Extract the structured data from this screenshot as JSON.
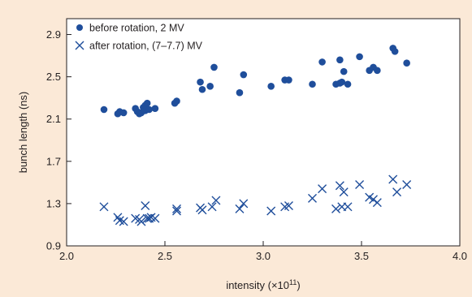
{
  "colors": {
    "background": "#fbe9d7",
    "plot_area": "#ffffff",
    "series": "#1f4e9b",
    "text": "#231f20"
  },
  "chart_data": {
    "type": "scatter",
    "xlabel": "intensity (×10",
    "xlabel_superscript": "11",
    "xlabel_close": ")",
    "ylabel": "bunch length (ns)",
    "xlim": [
      2.0,
      4.0
    ],
    "ylim": [
      0.9,
      3.05
    ],
    "x_ticks": [
      2.0,
      2.5,
      3.0,
      3.5,
      4.0
    ],
    "x_tick_labels": [
      "2.0",
      "2.5",
      "3.0",
      "3.5",
      "4.0"
    ],
    "y_ticks": [
      0.9,
      1.3,
      1.7,
      2.1,
      2.5,
      2.9
    ],
    "y_tick_labels": [
      "0.9",
      "1.3",
      "1.7",
      "2.1",
      "2.5",
      "2.9"
    ],
    "grid": false,
    "legend": "top-left",
    "series": [
      {
        "name": "before rotation, 2 MV",
        "marker": "circle",
        "points": [
          [
            2.19,
            2.19
          ],
          [
            2.26,
            2.15
          ],
          [
            2.27,
            2.17
          ],
          [
            2.29,
            2.16
          ],
          [
            2.35,
            2.2
          ],
          [
            2.36,
            2.17
          ],
          [
            2.37,
            2.15
          ],
          [
            2.38,
            2.16
          ],
          [
            2.39,
            2.21
          ],
          [
            2.4,
            2.18
          ],
          [
            2.4,
            2.23
          ],
          [
            2.41,
            2.25
          ],
          [
            2.42,
            2.19
          ],
          [
            2.45,
            2.2
          ],
          [
            2.55,
            2.25
          ],
          [
            2.56,
            2.27
          ],
          [
            2.68,
            2.45
          ],
          [
            2.69,
            2.38
          ],
          [
            2.73,
            2.41
          ],
          [
            2.75,
            2.59
          ],
          [
            2.88,
            2.35
          ],
          [
            2.9,
            2.52
          ],
          [
            3.04,
            2.41
          ],
          [
            3.11,
            2.47
          ],
          [
            3.13,
            2.47
          ],
          [
            3.25,
            2.43
          ],
          [
            3.3,
            2.64
          ],
          [
            3.37,
            2.43
          ],
          [
            3.39,
            2.44
          ],
          [
            3.4,
            2.45
          ],
          [
            3.41,
            2.55
          ],
          [
            3.43,
            2.43
          ],
          [
            3.39,
            2.66
          ],
          [
            3.49,
            2.69
          ],
          [
            3.54,
            2.56
          ],
          [
            3.56,
            2.59
          ],
          [
            3.58,
            2.56
          ],
          [
            3.66,
            2.77
          ],
          [
            3.67,
            2.74
          ],
          [
            3.73,
            2.63
          ]
        ]
      },
      {
        "name": "after rotation, (7–7.7) MV",
        "marker": "x",
        "points": [
          [
            2.19,
            1.27
          ],
          [
            2.26,
            1.17
          ],
          [
            2.27,
            1.14
          ],
          [
            2.29,
            1.13
          ],
          [
            2.35,
            1.16
          ],
          [
            2.37,
            1.15
          ],
          [
            2.38,
            1.13
          ],
          [
            2.4,
            1.28
          ],
          [
            2.41,
            1.16
          ],
          [
            2.42,
            1.16
          ],
          [
            2.43,
            1.17
          ],
          [
            2.45,
            1.16
          ],
          [
            2.56,
            1.23
          ],
          [
            2.56,
            1.25
          ],
          [
            2.68,
            1.26
          ],
          [
            2.69,
            1.24
          ],
          [
            2.74,
            1.27
          ],
          [
            2.76,
            1.33
          ],
          [
            2.88,
            1.25
          ],
          [
            2.9,
            1.3
          ],
          [
            3.04,
            1.23
          ],
          [
            3.11,
            1.27
          ],
          [
            3.13,
            1.28
          ],
          [
            3.25,
            1.35
          ],
          [
            3.3,
            1.44
          ],
          [
            3.37,
            1.25
          ],
          [
            3.39,
            1.47
          ],
          [
            3.4,
            1.27
          ],
          [
            3.41,
            1.41
          ],
          [
            3.43,
            1.27
          ],
          [
            3.49,
            1.48
          ],
          [
            3.54,
            1.36
          ],
          [
            3.56,
            1.34
          ],
          [
            3.58,
            1.31
          ],
          [
            3.66,
            1.53
          ],
          [
            3.68,
            1.41
          ],
          [
            3.73,
            1.48
          ]
        ]
      }
    ]
  }
}
